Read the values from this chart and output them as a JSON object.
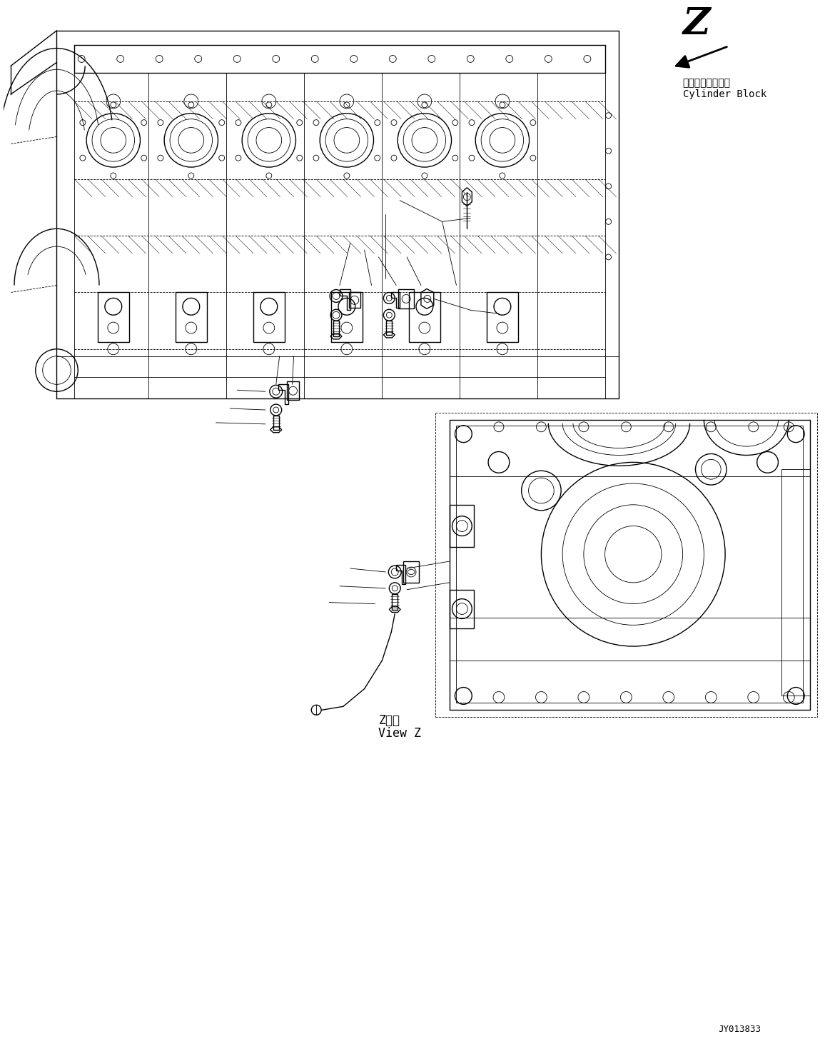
{
  "background_color": "#ffffff",
  "text_color": "#000000",
  "line_color": "#000000",
  "label_z": "Z",
  "label_cylinder_block_jp": "シリンダブロック",
  "label_cylinder_block_en": "Cylinder Block",
  "label_view_z_jp": "Z　視",
  "label_view_z_en": "View Z",
  "label_doc_number": "JY013833",
  "figsize": [
    11.63,
    14.69
  ],
  "dpi": 100
}
